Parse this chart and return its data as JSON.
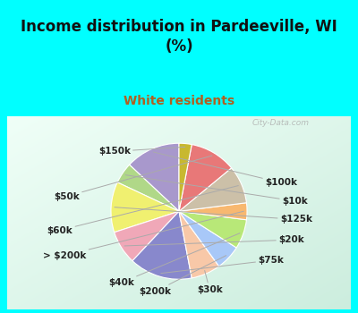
{
  "title": "Income distribution in Pardeeville, WI\n(%)",
  "subtitle": "White residents",
  "title_color": "#111111",
  "subtitle_color": "#b06020",
  "bg_cyan": "#00ffff",
  "chart_bg_top_left": "#f0fff8",
  "chart_bg_bottom_right": "#c8ecd8",
  "labels": [
    "$100k",
    "$10k",
    "$125k",
    "$20k",
    "$75k",
    "$30k",
    "$200k",
    "$40k",
    "> $200k",
    "$60k",
    "$50k",
    "$150k"
  ],
  "values": [
    13,
    5,
    12,
    8,
    15,
    7,
    6,
    7,
    4,
    9,
    11,
    3
  ],
  "colors": [
    "#a898cc",
    "#b0d888",
    "#f0f070",
    "#f0a8b8",
    "#8888cc",
    "#f8c8a8",
    "#a8c8f8",
    "#b8e878",
    "#f8b870",
    "#ccc0a8",
    "#e87878",
    "#c8b830"
  ],
  "wedge_edge_color": "#ffffff",
  "label_fontsize": 7.5,
  "label_font_weight": "bold",
  "label_font_color": "#222222",
  "watermark": "City-Data.com",
  "startangle": 90
}
